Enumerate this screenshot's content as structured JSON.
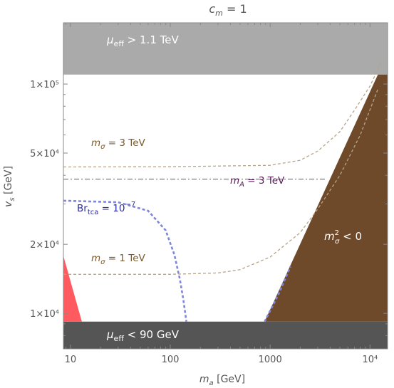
{
  "chart_data": {
    "type": "area",
    "title": "c_m = 1",
    "xlabel": "m_a [GeV]",
    "ylabel": "v_s [GeV]",
    "xscale": "log",
    "yscale": "log",
    "xlim": [
      8.5,
      15000
    ],
    "ylim": [
      7000,
      185000
    ],
    "x_ticks": [
      {
        "value": 10,
        "label": "10"
      },
      {
        "value": 100,
        "label": "100"
      },
      {
        "value": 1000,
        "label": "1000"
      },
      {
        "value": 10000,
        "label": "10⁴"
      }
    ],
    "y_ticks": [
      {
        "value": 10000,
        "label": "1×10⁴"
      },
      {
        "value": 20000,
        "label": "2×10⁴"
      },
      {
        "value": 50000,
        "label": "5×10⁴"
      },
      {
        "value": 100000,
        "label": "1×10⁵"
      }
    ],
    "regions": [
      {
        "id": "mu-high",
        "label": "μ_eff > 1.1 TeV",
        "color": "#aaaaaa",
        "vs_min": 110000
      },
      {
        "id": "mu-low",
        "label": "μ_eff < 90 GeV",
        "color": "#555555",
        "vs_max": 9200
      },
      {
        "id": "msigma-neg",
        "label": "m_σ² < 0",
        "color": "#6e4a2a",
        "points": [
          [
            880,
            9200
          ],
          [
            12000,
            110000
          ],
          [
            15000,
            110000
          ],
          [
            15000,
            9200
          ]
        ]
      },
      {
        "id": "red-excluded",
        "label": "",
        "color": "#ff5a5f",
        "points": [
          [
            8.5,
            17800
          ],
          [
            8.5,
            9200
          ],
          [
            13,
            9200
          ]
        ]
      }
    ],
    "series": [
      {
        "name": "m_σ = 3 TeV",
        "style": "dashed",
        "color": "#b5a489",
        "x": [
          8.5,
          100,
          1000,
          2000,
          3000,
          5000,
          7000,
          10000,
          13000
        ],
        "y": [
          43500,
          43600,
          44200,
          46500,
          51000,
          62000,
          77000,
          98000,
          125000
        ]
      },
      {
        "name": "m_σ = 1 TeV",
        "style": "dashed",
        "color": "#b5a489",
        "x": [
          8.5,
          100,
          300,
          500,
          1000,
          2000,
          3000,
          5000,
          8000,
          12000
        ],
        "y": [
          14800,
          14800,
          15000,
          15500,
          17600,
          22500,
          28500,
          40000,
          60000,
          95000
        ]
      },
      {
        "name": "m_A = 3 TeV",
        "style": "dashdot",
        "color": "#807890",
        "x": [
          8.5,
          3700
        ],
        "y": [
          38500,
          38500
        ]
      },
      {
        "name": "Br_tca = 10⁻⁷",
        "style": "dashed",
        "color": "#7f86d9",
        "x": [
          8.5,
          30,
          60,
          90,
          110,
          125,
          135,
          145
        ],
        "y": [
          31000,
          30500,
          28000,
          23000,
          18000,
          14000,
          11500,
          9200
        ]
      },
      {
        "name": "",
        "style": "dashed",
        "color": "#7f86d9",
        "x": [
          880,
          1200,
          1600
        ],
        "y": [
          9200,
          12000,
          16000
        ]
      }
    ],
    "annotations": [
      {
        "series": "m_σ = 3 TeV",
        "text": "m_σ = 3 TeV",
        "color": "#7a5a30"
      },
      {
        "series": "m_σ = 1 TeV",
        "text": "m_σ = 1 TeV",
        "color": "#7a5a30"
      },
      {
        "series": "m_A = 3 TeV",
        "text": "m_A = 3 TeV",
        "color": "#5a1a5a"
      },
      {
        "series": "Br_tca = 10⁻⁷",
        "text": "Br_tca = 10⁻⁷",
        "color": "#2d2da0"
      }
    ]
  }
}
